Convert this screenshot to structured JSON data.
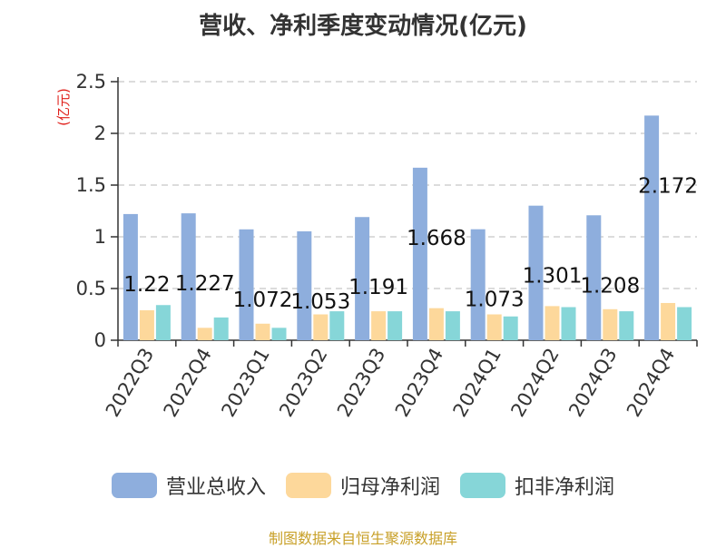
{
  "chart_data": {
    "type": "bar",
    "title": "营收、净利季度变动情况(亿元)",
    "ylabel": "(亿元)",
    "ylim": [
      0,
      2.5
    ],
    "yticks": [
      "0",
      "0.5",
      "1",
      "1.5",
      "2",
      "2.5"
    ],
    "grid": true,
    "legend_position": "bottom",
    "categories": [
      "2022Q3",
      "2022Q4",
      "2023Q1",
      "2023Q2",
      "2023Q3",
      "2023Q4",
      "2024Q1",
      "2024Q2",
      "2024Q3",
      "2024Q4"
    ],
    "series": [
      {
        "name": "营业总收入",
        "color": "#8eaedd",
        "values": [
          1.22,
          1.227,
          1.072,
          1.053,
          1.191,
          1.668,
          1.073,
          1.301,
          1.208,
          2.172
        ],
        "labels": [
          "1.22",
          "1.227",
          "1.072",
          "1.053",
          "1.191",
          "1.668",
          "1.073",
          "1.301",
          "1.208",
          "2.172"
        ]
      },
      {
        "name": "归母净利润",
        "color": "#fdd89b",
        "values": [
          0.29,
          0.12,
          0.16,
          0.25,
          0.28,
          0.31,
          0.25,
          0.33,
          0.3,
          0.36
        ]
      },
      {
        "name": "扣非净利润",
        "color": "#86d6d8",
        "values": [
          0.34,
          0.22,
          0.12,
          0.28,
          0.28,
          0.28,
          0.23,
          0.32,
          0.28,
          0.32
        ]
      }
    ]
  },
  "source": "制图数据来自恒生聚源数据库"
}
